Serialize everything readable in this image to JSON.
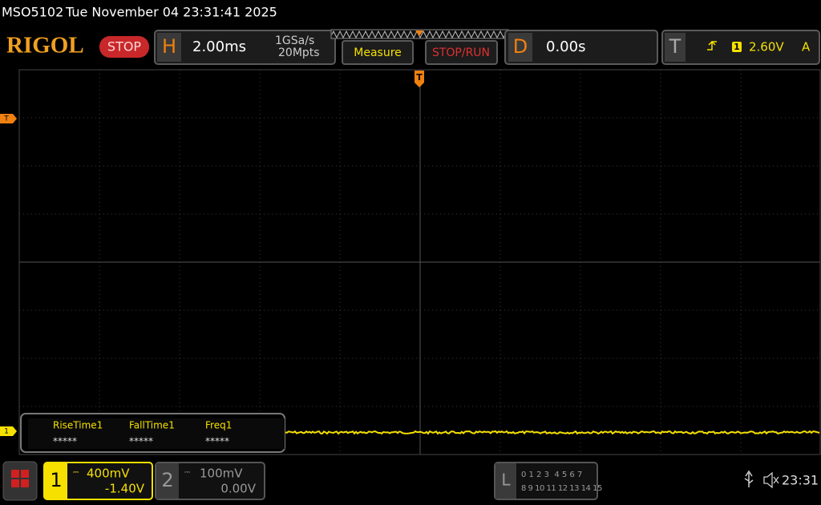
{
  "status_bar": {
    "model": "MSO5102",
    "datetime": "Tue November 04 23:31:41 2025"
  },
  "toolbar": {
    "logo": "RIGOL",
    "run_state": "STOP",
    "horizontal": {
      "label": "H",
      "timebase": "2.00ms",
      "sample_rate": "1GSa/s",
      "memory_depth": "20Mpts"
    },
    "measure_button": "Measure",
    "stop_run_button": "STOP/RUN",
    "delay": {
      "label": "D",
      "value": "0.00s"
    },
    "trigger": {
      "label": "T",
      "channel": "1",
      "level": "2.60V",
      "mode": "A"
    }
  },
  "waveform": {
    "trigger_position_marker": "T",
    "trigger_level_marker": "T",
    "channel_marker": "1"
  },
  "measurements": [
    {
      "name": "RiseTime1",
      "value": "*****"
    },
    {
      "name": "FallTime1",
      "value": "*****"
    },
    {
      "name": "Freq1",
      "value": "*****"
    }
  ],
  "bottom_bar": {
    "ch1": {
      "number": "1",
      "scale": "400mV",
      "offset": "-1.40V"
    },
    "ch2": {
      "number": "2",
      "scale": "100mV",
      "offset": "0.00V"
    },
    "logic": {
      "label": "L",
      "row1": "0 1 2 3  4 5 6 7",
      "row2": "8 9 10 11 12 13 14 15"
    },
    "clock": "23:31"
  }
}
